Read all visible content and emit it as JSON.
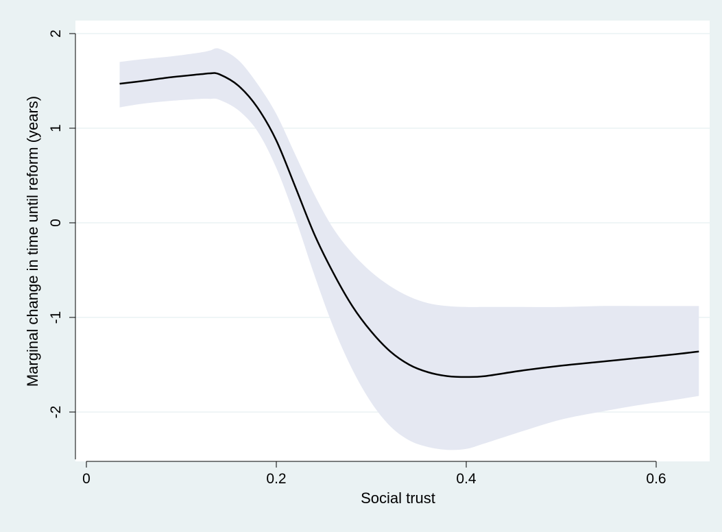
{
  "chart_data": {
    "type": "line",
    "title": "",
    "xlabel": "Social trust",
    "ylabel": "Marginal change in time until reform (years)",
    "xlim": [
      0,
      0.65
    ],
    "ylim": [
      -2.5,
      2.1
    ],
    "grid": true,
    "legend": "none",
    "xticks": [
      0,
      0.2,
      0.4,
      0.6
    ],
    "xtick_labels": [
      "0",
      "0.2",
      "0.4",
      "0.6"
    ],
    "yticks": [
      -2,
      -1,
      0,
      1,
      2
    ],
    "ytick_labels": [
      "-2",
      "-1",
      "0",
      "1",
      "2"
    ],
    "series": [
      {
        "type": "line",
        "x": [
          0.035,
          0.06,
          0.09,
          0.12,
          0.13,
          0.14,
          0.16,
          0.18,
          0.2,
          0.22,
          0.24,
          0.26,
          0.28,
          0.3,
          0.32,
          0.34,
          0.36,
          0.38,
          0.4,
          0.42,
          0.46,
          0.5,
          0.54,
          0.58,
          0.62,
          0.645
        ],
        "y": [
          1.47,
          1.5,
          1.54,
          1.57,
          1.58,
          1.57,
          1.45,
          1.22,
          0.87,
          0.38,
          -0.12,
          -0.53,
          -0.88,
          -1.15,
          -1.36,
          -1.5,
          -1.58,
          -1.62,
          -1.63,
          -1.62,
          -1.56,
          -1.51,
          -1.47,
          -1.43,
          -1.39,
          -1.36
        ]
      },
      {
        "type": "band",
        "x": [
          0.035,
          0.06,
          0.09,
          0.12,
          0.13,
          0.14,
          0.16,
          0.18,
          0.2,
          0.22,
          0.24,
          0.26,
          0.28,
          0.3,
          0.32,
          0.34,
          0.36,
          0.38,
          0.4,
          0.42,
          0.46,
          0.5,
          0.54,
          0.58,
          0.62,
          0.645
        ],
        "lower": [
          1.22,
          1.26,
          1.29,
          1.31,
          1.31,
          1.3,
          1.19,
          0.97,
          0.58,
          0.05,
          -0.55,
          -1.1,
          -1.55,
          -1.9,
          -2.15,
          -2.3,
          -2.37,
          -2.4,
          -2.39,
          -2.33,
          -2.2,
          -2.08,
          -2.0,
          -1.93,
          -1.87,
          -1.83
        ],
        "upper": [
          1.7,
          1.73,
          1.76,
          1.8,
          1.82,
          1.84,
          1.72,
          1.47,
          1.15,
          0.72,
          0.3,
          -0.06,
          -0.32,
          -0.52,
          -0.67,
          -0.78,
          -0.85,
          -0.88,
          -0.89,
          -0.89,
          -0.89,
          -0.89,
          -0.88,
          -0.88,
          -0.88,
          -0.88
        ]
      }
    ],
    "colors": {
      "background": "#eaf2f3",
      "plot_area": "#ffffff",
      "grid": "#eaf2f3",
      "line": "#000000",
      "band": "#e5e8f2"
    }
  }
}
